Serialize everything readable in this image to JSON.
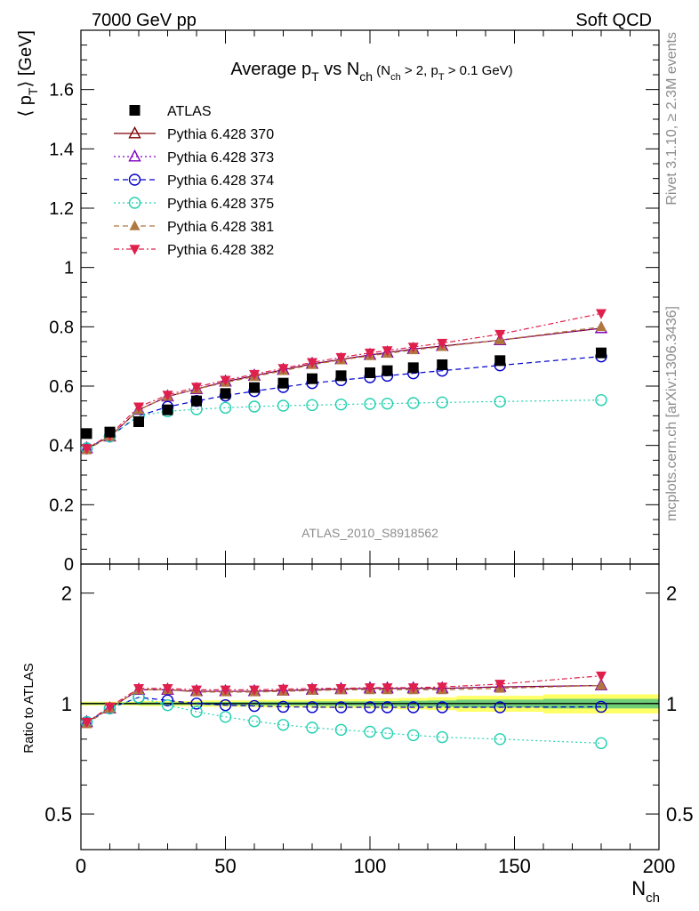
{
  "header": {
    "left": "7000 GeV pp",
    "right": "Soft QCD"
  },
  "side_labels": {
    "rivet": "Rivet 3.1.10, ≥ 2.3M events",
    "mcplots": "mcplots.cern.ch [arXiv:1306.3436]"
  },
  "chart_data": [
    {
      "type": "scatter",
      "title_parts": {
        "main": "Average p",
        "sub_main": "T",
        "vs": " vs N",
        "sub_vs": "ch",
        "cond_open": " (N",
        "cond_sub1": "ch",
        "cond_mid": " > 2, p",
        "cond_sub2": "T",
        "cond_close": " > 0.1 GeV)"
      },
      "ylabel": "⟨ p",
      "ylabel_sub": "T",
      "ylabel_tail": "⟩  [GeV]",
      "watermark": "ATLAS_2010_S8918562",
      "xlim": [
        0,
        200
      ],
      "ylim": [
        0,
        1.8
      ],
      "y_ticks": [
        "0",
        "0.2",
        "0.4",
        "0.6",
        "0.8",
        "1",
        "1.2",
        "1.4",
        "1.6"
      ],
      "legend_position": "top-left",
      "data": {
        "name": "ATLAS",
        "color": "#000000",
        "x": [
          2,
          10,
          20,
          30,
          40,
          50,
          60,
          70,
          80,
          90,
          100,
          106,
          115,
          125,
          145,
          180
        ],
        "y": [
          0.44,
          0.445,
          0.48,
          0.52,
          0.55,
          0.575,
          0.595,
          0.61,
          0.625,
          0.635,
          0.645,
          0.652,
          0.662,
          0.672,
          0.686,
          0.712
        ]
      },
      "series": [
        {
          "name": "Pythia 6.428 370",
          "color": "#800000",
          "marker": "open-triangle",
          "line": "solid",
          "x": [
            2,
            10,
            20,
            30,
            40,
            50,
            60,
            70,
            80,
            90,
            100,
            106,
            115,
            125,
            145,
            180
          ],
          "y": [
            0.39,
            0.43,
            0.52,
            0.565,
            0.59,
            0.615,
            0.635,
            0.655,
            0.675,
            0.69,
            0.705,
            0.713,
            0.725,
            0.735,
            0.755,
            0.795
          ]
        },
        {
          "name": "Pythia 6.428 373",
          "color": "#8000c0",
          "marker": "open-triangle",
          "line": "dotted",
          "x": [
            2,
            10,
            20,
            30,
            40,
            50,
            60,
            70,
            80,
            90,
            100,
            106,
            115,
            125,
            145,
            180
          ],
          "y": [
            0.39,
            0.43,
            0.52,
            0.565,
            0.59,
            0.615,
            0.635,
            0.655,
            0.675,
            0.69,
            0.705,
            0.713,
            0.725,
            0.735,
            0.755,
            0.795
          ]
        },
        {
          "name": "Pythia 6.428 374",
          "color": "#0000cc",
          "marker": "open-circle",
          "line": "dashed",
          "x": [
            2,
            10,
            20,
            30,
            40,
            50,
            60,
            70,
            80,
            90,
            100,
            106,
            115,
            125,
            145,
            180
          ],
          "y": [
            0.39,
            0.43,
            0.5,
            0.53,
            0.55,
            0.568,
            0.583,
            0.597,
            0.61,
            0.62,
            0.63,
            0.635,
            0.643,
            0.652,
            0.67,
            0.7
          ]
        },
        {
          "name": "Pythia 6.428 375",
          "color": "#20d0b0",
          "marker": "open-circle",
          "line": "dotted",
          "x": [
            2,
            10,
            20,
            30,
            40,
            50,
            60,
            70,
            80,
            90,
            100,
            106,
            115,
            125,
            145,
            180
          ],
          "y": [
            0.39,
            0.43,
            0.5,
            0.515,
            0.522,
            0.527,
            0.531,
            0.534,
            0.536,
            0.538,
            0.54,
            0.541,
            0.543,
            0.545,
            0.548,
            0.553
          ]
        },
        {
          "name": "Pythia 6.428 381",
          "color": "#b07840",
          "marker": "filled-triangle",
          "line": "dashed",
          "x": [
            2,
            10,
            20,
            30,
            40,
            50,
            60,
            70,
            80,
            90,
            100,
            106,
            115,
            125,
            145,
            180
          ],
          "y": [
            0.385,
            0.43,
            0.52,
            0.565,
            0.59,
            0.612,
            0.632,
            0.652,
            0.672,
            0.688,
            0.702,
            0.71,
            0.722,
            0.733,
            0.755,
            0.8
          ]
        },
        {
          "name": "Pythia 6.428 382",
          "color": "#e0204c",
          "marker": "filled-triangle-down",
          "line": "dashdot",
          "x": [
            2,
            10,
            20,
            30,
            40,
            50,
            60,
            70,
            80,
            90,
            100,
            106,
            115,
            125,
            145,
            180
          ],
          "y": [
            0.39,
            0.435,
            0.53,
            0.57,
            0.597,
            0.62,
            0.64,
            0.66,
            0.68,
            0.697,
            0.712,
            0.72,
            0.732,
            0.745,
            0.775,
            0.845
          ]
        }
      ]
    },
    {
      "type": "scatter",
      "ylabel": "Ratio to ATLAS",
      "xlabel": "N",
      "xlabel_sub": "ch",
      "xlim": [
        0,
        200
      ],
      "ylim": [
        0.4,
        2.4
      ],
      "y_scale": "log",
      "y_tick_labels_left": [
        "0.5",
        "1",
        "2"
      ],
      "y_tick_labels_right": [
        "0.5",
        "1",
        "2"
      ],
      "x_ticks": [
        "0",
        "50",
        "100",
        "150",
        "200"
      ],
      "band": {
        "inner_color": "#3fbf7f",
        "outer_color": "#ffff66"
      },
      "series": [
        {
          "name": "Pythia 6.428 370",
          "x": [
            2,
            10,
            20,
            30,
            40,
            50,
            60,
            70,
            80,
            90,
            100,
            106,
            115,
            125,
            145,
            180
          ],
          "y": [
            0.89,
            0.97,
            1.09,
            1.09,
            1.08,
            1.08,
            1.08,
            1.085,
            1.09,
            1.095,
            1.1,
            1.1,
            1.1,
            1.1,
            1.11,
            1.12
          ]
        },
        {
          "name": "Pythia 6.428 373",
          "x": [
            2,
            10,
            20,
            30,
            40,
            50,
            60,
            70,
            80,
            90,
            100,
            106,
            115,
            125,
            145,
            180
          ],
          "y": [
            0.89,
            0.97,
            1.09,
            1.09,
            1.08,
            1.08,
            1.08,
            1.085,
            1.09,
            1.095,
            1.1,
            1.1,
            1.1,
            1.1,
            1.11,
            1.12
          ]
        },
        {
          "name": "Pythia 6.428 374",
          "x": [
            2,
            10,
            20,
            30,
            40,
            50,
            60,
            70,
            80,
            90,
            100,
            106,
            115,
            125,
            145,
            180
          ],
          "y": [
            0.89,
            0.97,
            1.04,
            1.02,
            1.0,
            0.99,
            0.985,
            0.98,
            0.978,
            0.977,
            0.977,
            0.977,
            0.977,
            0.977,
            0.977,
            0.98
          ]
        },
        {
          "name": "Pythia 6.428 375",
          "x": [
            2,
            10,
            20,
            30,
            40,
            50,
            60,
            70,
            80,
            90,
            100,
            106,
            115,
            125,
            145,
            180
          ],
          "y": [
            0.89,
            0.97,
            1.04,
            0.99,
            0.95,
            0.92,
            0.895,
            0.875,
            0.86,
            0.848,
            0.838,
            0.83,
            0.82,
            0.81,
            0.8,
            0.78
          ]
        },
        {
          "name": "Pythia 6.428 381",
          "x": [
            2,
            10,
            20,
            30,
            40,
            50,
            60,
            70,
            80,
            90,
            100,
            106,
            115,
            125,
            145,
            180
          ],
          "y": [
            0.88,
            0.97,
            1.09,
            1.09,
            1.075,
            1.075,
            1.075,
            1.08,
            1.085,
            1.09,
            1.09,
            1.09,
            1.09,
            1.09,
            1.1,
            1.12
          ]
        },
        {
          "name": "Pythia 6.428 382",
          "x": [
            2,
            10,
            20,
            30,
            40,
            50,
            60,
            70,
            80,
            90,
            100,
            106,
            115,
            125,
            145,
            180
          ],
          "y": [
            0.89,
            0.98,
            1.1,
            1.1,
            1.09,
            1.09,
            1.09,
            1.095,
            1.1,
            1.1,
            1.105,
            1.105,
            1.105,
            1.11,
            1.13,
            1.19
          ]
        }
      ]
    }
  ]
}
